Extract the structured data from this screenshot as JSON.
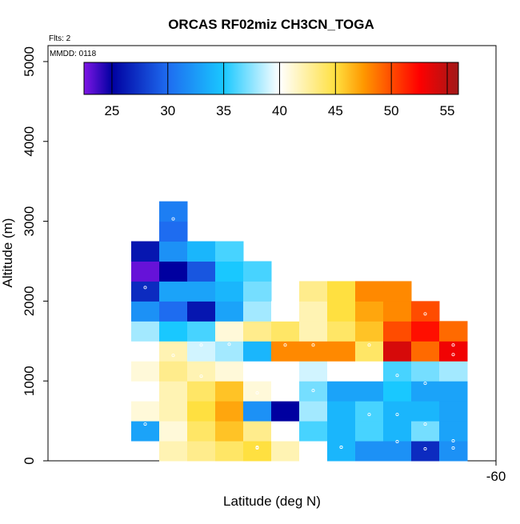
{
  "chart_data": {
    "type": "heatmap",
    "title": "ORCAS RF02miz CH3CN_TOGA",
    "xlabel": "Latitude (deg N)",
    "ylabel": "Altitude (m)",
    "x_tick_labels": [
      {
        "value": -60,
        "label": "-60"
      }
    ],
    "y_ticks": [
      0,
      1000,
      2000,
      3000,
      4000,
      5000
    ],
    "ylim": [
      0,
      5200
    ],
    "annotations": {
      "flights": "Flts: 2",
      "date": "MMDD: 0118"
    },
    "colorbar": {
      "range": [
        22.5,
        56
      ],
      "ticks": [
        25,
        30,
        35,
        40,
        45,
        50,
        55
      ],
      "colors": [
        "#7f16e6",
        "#0000a0",
        "#1e6cf0",
        "#19c8ff",
        "#ffffff",
        "#ffe040",
        "#ff9800",
        "#ff0000",
        "#a01818"
      ],
      "color_stops": [
        22.5,
        25,
        30,
        35,
        40,
        45,
        47.5,
        52.5,
        56
      ]
    },
    "grid": false,
    "cell_height_m": 250,
    "column_count": 12,
    "columns_note": "column index 0 = westmost (left), rows listed from altitude 0 upward; null = no data",
    "columns": [
      [
        null,
        33,
        41,
        40,
        41,
        40,
        38,
        32,
        27,
        23,
        26
      ],
      [
        42,
        41,
        42,
        42,
        43,
        42,
        35,
        30,
        33,
        25,
        32,
        30,
        31
      ],
      [
        43,
        44,
        45,
        44,
        42,
        39,
        36,
        26,
        33,
        29,
        34
      ],
      [
        44,
        46,
        47,
        46,
        41,
        38,
        41,
        33,
        34,
        35,
        36
      ],
      [
        45,
        43,
        32,
        41,
        40,
        34,
        43,
        38,
        37,
        36
      ],
      [
        42,
        40,
        25,
        40,
        40,
        48,
        44,
        40
      ],
      [
        40,
        36,
        38,
        37,
        39,
        48,
        42,
        42,
        43
      ],
      [
        34,
        34,
        34,
        33,
        40,
        48,
        44,
        45,
        45
      ],
      [
        32,
        36,
        36,
        33,
        40,
        44,
        46,
        47,
        48
      ],
      [
        32,
        34,
        34,
        35,
        36,
        54,
        50,
        48,
        48
      ],
      [
        27,
        37,
        34,
        33,
        37,
        49,
        52,
        50
      ],
      [
        32,
        33,
        33,
        33,
        38,
        53,
        49
      ]
    ],
    "sample_points": [
      {
        "col": 1,
        "alt": 3030
      },
      {
        "col": 0,
        "alt": 2170
      },
      {
        "col": 2,
        "alt": 1450
      },
      {
        "col": 3,
        "alt": 1460
      },
      {
        "col": 1,
        "alt": 1320
      },
      {
        "col": 0,
        "alt": 1270
      },
      {
        "col": 2,
        "alt": 1060
      },
      {
        "col": 0,
        "alt": 460
      },
      {
        "col": 4,
        "alt": 170
      },
      {
        "col": 4,
        "alt": 160
      },
      {
        "col": 4,
        "alt": 850
      },
      {
        "col": 6,
        "alt": 880
      },
      {
        "col": 5,
        "alt": 1450
      },
      {
        "col": 6,
        "alt": 1450
      },
      {
        "col": 8,
        "alt": 1450
      },
      {
        "col": 9,
        "alt": 1070
      },
      {
        "col": 9,
        "alt": 580
      },
      {
        "col": 10,
        "alt": 970
      },
      {
        "col": 10,
        "alt": 460
      },
      {
        "col": 10,
        "alt": 1840
      },
      {
        "col": 11,
        "alt": 1330
      },
      {
        "col": 11,
        "alt": 1450
      },
      {
        "col": 11,
        "alt": 250
      },
      {
        "col": 11,
        "alt": 160
      },
      {
        "col": 7,
        "alt": 170
      },
      {
        "col": 7,
        "alt": 170
      },
      {
        "col": 8,
        "alt": 580
      },
      {
        "col": 9,
        "alt": 240
      },
      {
        "col": 10,
        "alt": 150
      }
    ]
  }
}
